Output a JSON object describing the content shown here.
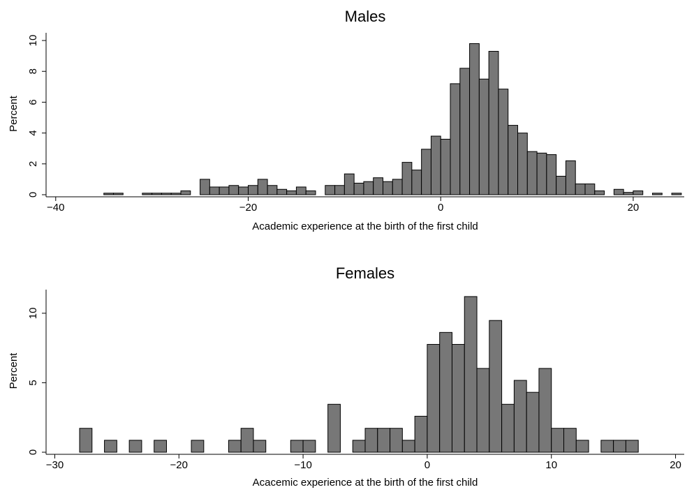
{
  "chart_data": [
    {
      "type": "histogram",
      "title": "Males",
      "xlabel": "Academic experience at the birth of the first child",
      "ylabel": "Percent",
      "bins": [
        -35,
        -34,
        -33,
        -32,
        -31,
        -30,
        -29,
        -28,
        -27,
        -26,
        -25,
        -24,
        -23,
        -22,
        -21,
        -20,
        -19,
        -18,
        -17,
        -16,
        -15,
        -14,
        -13,
        -12,
        -11,
        -10,
        -9,
        -8,
        -7,
        -6,
        -5,
        -4,
        -3,
        -2,
        -1,
        0,
        1,
        2,
        3,
        4,
        5,
        6,
        7,
        8,
        9,
        10,
        11,
        12,
        13,
        14,
        15,
        16,
        17,
        18,
        19,
        20,
        21,
        22,
        23,
        24,
        25
      ],
      "values": [
        0.1,
        0.1,
        0,
        0,
        0.1,
        0.1,
        0.1,
        0.1,
        0.25,
        0,
        1.0,
        0.5,
        0.5,
        0.6,
        0.5,
        0.6,
        1.0,
        0.6,
        0.35,
        0.25,
        0.5,
        0.25,
        0,
        0.6,
        0.6,
        1.35,
        0.75,
        0.85,
        1.1,
        0.85,
        1.0,
        2.1,
        1.6,
        2.95,
        3.8,
        3.6,
        7.2,
        8.2,
        9.8,
        7.5,
        9.3,
        6.85,
        4.5,
        4.0,
        2.8,
        2.7,
        2.6,
        1.2,
        2.2,
        0.7,
        0.7,
        0.25,
        0,
        0.35,
        0.15,
        0.25,
        0,
        0.1,
        0,
        0.1
      ],
      "color": "#777777",
      "xlim": [
        -41,
        25.3
      ],
      "ylim": [
        0,
        10.5
      ],
      "xticks": [
        {
          "value": -40,
          "label": "−40"
        },
        {
          "value": -20,
          "label": "−20"
        },
        0,
        20
      ],
      "yticks": [
        0,
        2,
        4,
        6,
        8,
        10
      ]
    },
    {
      "type": "histogram",
      "title": "Females",
      "xlabel": "Acacemic experience at the birth of the first child",
      "ylabel": "Percent",
      "bins": [
        -28,
        -27,
        -26,
        -25,
        -24,
        -23,
        -22,
        -21,
        -20,
        -19,
        -18,
        -17,
        -16,
        -15,
        -14,
        -13,
        -12,
        -11,
        -10,
        -9,
        -8,
        -7,
        -6,
        -5,
        -4,
        -3,
        -2,
        -1,
        0,
        1,
        2,
        3,
        4,
        5,
        6,
        7,
        8,
        9,
        10,
        11,
        12,
        13,
        14,
        15,
        16,
        17
      ],
      "values": [
        1.72,
        0,
        0.86,
        0,
        0.86,
        0,
        0.86,
        0,
        0,
        0.86,
        0,
        0,
        0.86,
        1.72,
        0.86,
        0,
        0,
        0.86,
        0.86,
        0,
        3.45,
        0,
        0.86,
        1.72,
        1.72,
        1.72,
        0.86,
        2.59,
        7.76,
        8.62,
        7.76,
        11.2,
        6.03,
        9.48,
        3.45,
        5.17,
        4.31,
        6.03,
        1.72,
        1.72,
        0.86,
        0,
        0.86,
        0.86,
        0.86
      ],
      "color": "#777777",
      "xlim": [
        -30.7,
        20.7
      ],
      "ylim": [
        0,
        11.7
      ],
      "xticks": [
        {
          "value": -30,
          "label": "−30"
        },
        {
          "value": -20,
          "label": "−20"
        },
        {
          "value": -10,
          "label": "−10"
        },
        0,
        10,
        20
      ],
      "yticks": [
        0,
        5,
        10
      ]
    }
  ]
}
